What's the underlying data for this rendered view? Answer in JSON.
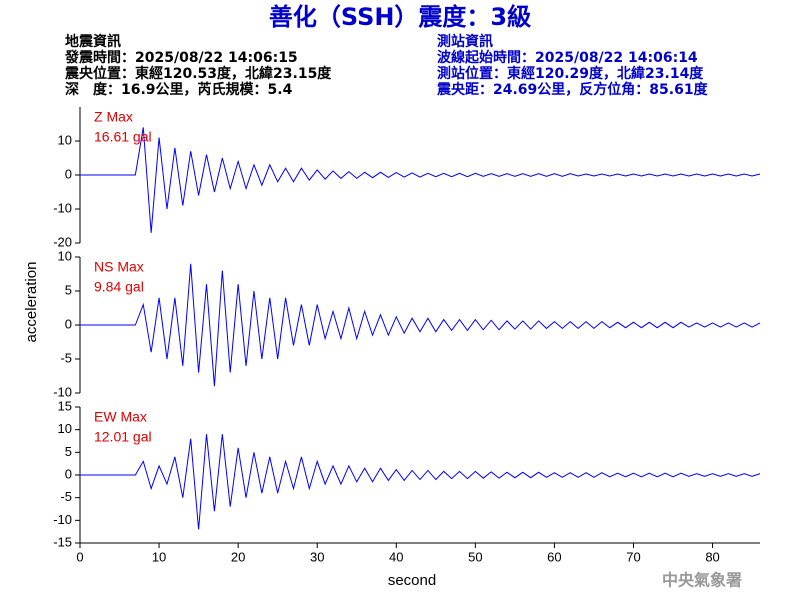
{
  "chart_data": {
    "type": "line",
    "title": "善化（SSH）震度：3級",
    "header_left": [
      "地震資訊",
      "發震時間：2025/08/22 14:06:15",
      "震央位置：東經120.53度，北緯23.15度",
      "深　度：16.9公里，芮氏規模：5.4"
    ],
    "header_right": [
      "測站資訊",
      "波線起始時間：2025/08/22 14:06:14",
      "測站位置：東經120.29度，北緯23.14度",
      "震央距：24.69公里，反方位角：85.61度"
    ],
    "footer": "中央氣象署",
    "xlabel": "second",
    "ylabel": "acceleration",
    "xlim": [
      0,
      86
    ],
    "xticks": [
      0,
      10,
      20,
      30,
      40,
      50,
      60,
      70,
      80
    ],
    "x": [
      0,
      1,
      2,
      3,
      4,
      5,
      6,
      7,
      8,
      9,
      10,
      11,
      12,
      13,
      14,
      15,
      16,
      17,
      18,
      19,
      20,
      21,
      22,
      23,
      24,
      25,
      26,
      27,
      28,
      29,
      30,
      31,
      32,
      33,
      34,
      35,
      36,
      37,
      38,
      39,
      40,
      41,
      42,
      43,
      44,
      45,
      46,
      47,
      48,
      49,
      50,
      51,
      52,
      53,
      54,
      55,
      56,
      57,
      58,
      59,
      60,
      61,
      62,
      63,
      64,
      65,
      66,
      67,
      68,
      69,
      70,
      71,
      72,
      73,
      74,
      75,
      76,
      77,
      78,
      79,
      80,
      81,
      82,
      83,
      84,
      85,
      86
    ],
    "series": [
      {
        "name": "Z Max",
        "max_label": "16.61 gal",
        "color": "#0000ff",
        "ylim": [
          -20,
          20
        ],
        "yticks": [
          -20,
          -10,
          0,
          10
        ],
        "values": [
          0,
          0,
          0,
          0,
          0,
          0,
          0,
          0,
          14,
          -17,
          11,
          -10,
          8,
          -9,
          7,
          -6,
          6,
          -5,
          5,
          -4,
          4,
          -4,
          3,
          -3,
          3,
          -2,
          2,
          -2,
          2,
          -1.5,
          1.5,
          -1.2,
          1.2,
          -1,
          1,
          -1,
          0.8,
          -0.8,
          0.8,
          -0.7,
          0.7,
          -0.6,
          0.6,
          -0.6,
          0.5,
          -0.5,
          0.5,
          -0.5,
          0.5,
          -0.5,
          0.5,
          -0.4,
          0.4,
          -0.4,
          0.4,
          -0.4,
          0.4,
          -0.4,
          0.4,
          -0.4,
          0.4,
          -0.4,
          0.4,
          -0.3,
          0.3,
          -0.3,
          0.3,
          -0.3,
          0.3,
          -0.3,
          0.3,
          -0.3,
          0.3,
          -0.3,
          0.3,
          -0.3,
          0.3,
          -0.3,
          0.3,
          -0.3,
          0.3,
          -0.3,
          0.3,
          -0.3,
          0.3,
          -0.3,
          0.3
        ]
      },
      {
        "name": "NS Max",
        "max_label": "9.84 gal",
        "color": "#0000ff",
        "ylim": [
          -10,
          10
        ],
        "yticks": [
          -10,
          -5,
          0,
          5,
          10
        ],
        "values": [
          0,
          0,
          0,
          0,
          0,
          0,
          0,
          0,
          3,
          -4,
          4,
          -5,
          4,
          -6,
          9,
          -7,
          6,
          -9,
          8,
          -7,
          6,
          -6,
          5,
          -5,
          4,
          -5,
          4,
          -3,
          3,
          -3,
          3,
          -2,
          2,
          -2,
          2.5,
          -2,
          2,
          -1.5,
          1.5,
          -1.5,
          1.2,
          -1.2,
          1,
          -1,
          1,
          -1,
          0.8,
          -0.8,
          0.8,
          -0.8,
          0.8,
          -0.7,
          0.7,
          -0.7,
          0.6,
          -0.6,
          0.6,
          -0.6,
          0.6,
          -0.5,
          0.5,
          -0.5,
          0.5,
          -0.5,
          0.5,
          -0.5,
          0.5,
          -0.4,
          0.4,
          -0.4,
          0.4,
          -0.4,
          0.4,
          -0.4,
          0.4,
          -0.4,
          0.4,
          -0.3,
          0.3,
          -0.3,
          0.3,
          -0.3,
          0.3,
          -0.3,
          0.3,
          -0.3,
          0.3
        ]
      },
      {
        "name": "EW Max",
        "max_label": "12.01 gal",
        "color": "#0000ff",
        "ylim": [
          -15,
          15
        ],
        "yticks": [
          -15,
          -10,
          -5,
          0,
          5,
          10,
          15
        ],
        "values": [
          0,
          0,
          0,
          0,
          0,
          0,
          0,
          0,
          3,
          -3,
          2,
          -2,
          4,
          -5,
          8,
          -12,
          9,
          -8,
          9,
          -7,
          6,
          -5,
          5,
          -4,
          4,
          -4,
          3,
          -3,
          4,
          -3,
          3,
          -2,
          2,
          -2,
          2,
          -1.5,
          1.5,
          -1.5,
          1.5,
          -1.2,
          1.2,
          -1.2,
          1,
          -1,
          1,
          -1,
          0.8,
          -0.8,
          0.8,
          -0.8,
          0.8,
          -0.7,
          0.7,
          -0.7,
          0.6,
          -0.6,
          0.6,
          -0.6,
          0.6,
          -0.5,
          0.5,
          -0.5,
          0.5,
          -0.5,
          0.5,
          -0.5,
          0.5,
          -0.4,
          0.4,
          -0.4,
          0.4,
          -0.4,
          0.4,
          -0.4,
          0.4,
          -0.4,
          0.4,
          -0.3,
          0.3,
          -0.3,
          0.3,
          -0.3,
          0.3,
          -0.3,
          0.3,
          -0.3,
          0.3
        ]
      }
    ]
  }
}
